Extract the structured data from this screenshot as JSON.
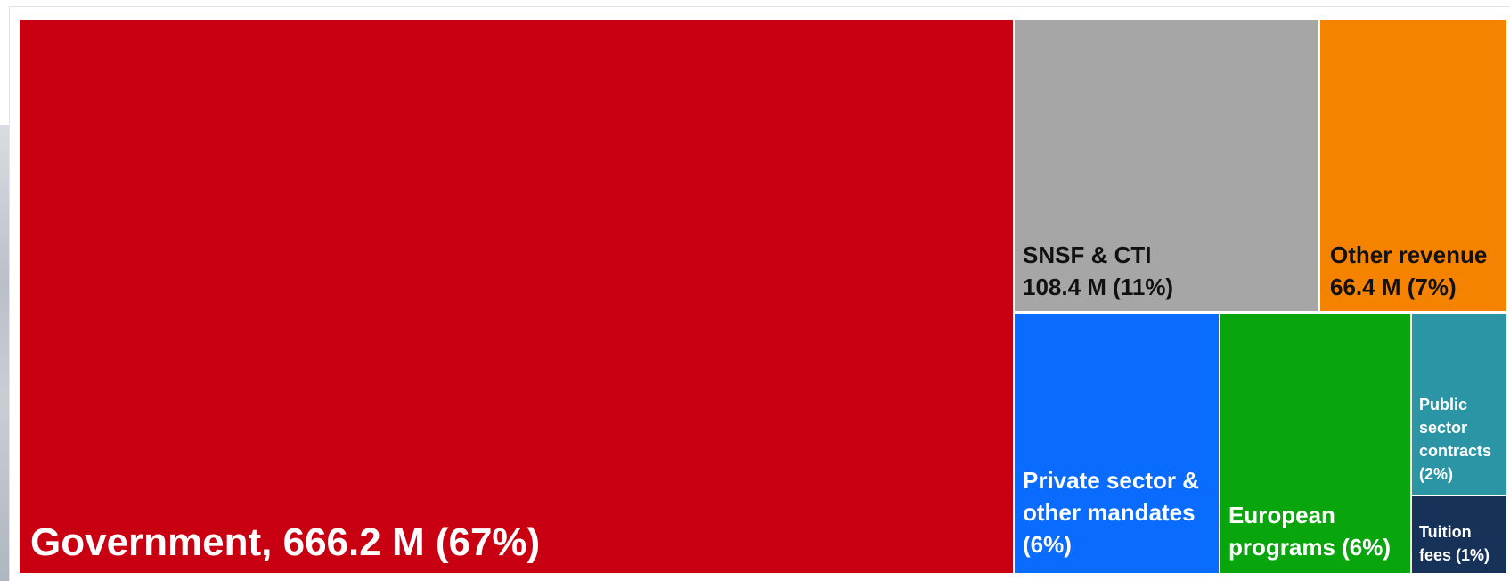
{
  "chart_data": {
    "type": "treemap",
    "unit": "M",
    "items": [
      {
        "name": "Government",
        "value": 666.2,
        "percent": 67,
        "color": "#c90012",
        "text_color": "#ffffff",
        "label_lines": [
          "Government, 666.2 M (67%)"
        ]
      },
      {
        "name": "SNSF & CTI",
        "value": 108.4,
        "percent": 11,
        "color": "#a6a6a6",
        "text_color": "#111111",
        "label_lines": [
          "SNSF & CTI",
          "108.4 M (11%)"
        ]
      },
      {
        "name": "Other revenue",
        "value": 66.4,
        "percent": 7,
        "color": "#f58300",
        "text_color": "#111111",
        "label_lines": [
          "Other revenue",
          "66.4 M (7%)"
        ]
      },
      {
        "name": "Private sector & other mandates",
        "percent": 6,
        "color": "#0a6cff",
        "text_color": "#ffffff",
        "label_lines": [
          "Private sector &",
          "other mandates",
          "(6%)"
        ]
      },
      {
        "name": "European programs",
        "percent": 6,
        "color": "#08a60c",
        "text_color": "#ffffff",
        "label_lines": [
          "European",
          "programs (6%)"
        ]
      },
      {
        "name": "Public sector contracts",
        "percent": 2,
        "color": "#2b95a5",
        "text_color": "#ffffff",
        "label_lines": [
          "Public",
          "sector",
          "contracts",
          "(2%)"
        ]
      },
      {
        "name": "Tuition fees",
        "percent": 1,
        "color": "#173258",
        "text_color": "#ffffff",
        "label_lines": [
          "Tuition",
          "fees (1%)"
        ]
      }
    ]
  }
}
